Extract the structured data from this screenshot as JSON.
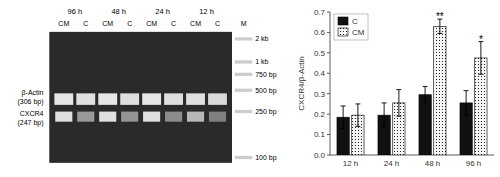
{
  "chart_data": [
    {
      "type": "bar",
      "categories": [
        "12 h",
        "24 h",
        "48 h",
        "96 h"
      ],
      "series": [
        {
          "name": "C",
          "color": "#111111",
          "values": [
            0.185,
            0.195,
            0.295,
            0.255
          ],
          "errors": [
            0.055,
            0.06,
            0.04,
            0.06
          ]
        },
        {
          "name": "CM",
          "color": "#f5f5f5",
          "values": [
            0.195,
            0.255,
            0.63,
            0.475
          ],
          "errors": [
            0.055,
            0.065,
            0.035,
            0.08
          ]
        }
      ],
      "ylabel": "CXCR4/β-Actin",
      "ylim": [
        0,
        0.7
      ],
      "yticks": [
        {
          "value": 0,
          "label": "0.0"
        },
        0.1,
        0.2,
        0.3,
        0.4,
        0.5,
        0.6,
        0.7
      ],
      "legend": "upper left",
      "grid": false,
      "annotations": [
        {
          "text": "**",
          "category": "48 h",
          "series": "CM"
        },
        {
          "text": "*",
          "category": "96 h",
          "series": "CM"
        }
      ]
    },
    {
      "type": "gel",
      "color": "#2a2a2a",
      "lane_groups": [
        "96 h",
        "48 h",
        "24 h",
        "12 h"
      ],
      "categories": [
        "CM",
        "C",
        "CM",
        "C",
        "CM",
        "C",
        "CM",
        "C"
      ],
      "series": [
        {
          "name": "β-Actin\n(306 bp)",
          "values": [
            0.9,
            0.88,
            0.9,
            0.87,
            0.9,
            0.87,
            0.88,
            0.85
          ]
        },
        {
          "name": "CXCR4\n(247 bp)",
          "values": [
            0.88,
            0.6,
            0.88,
            0.58,
            0.88,
            0.55,
            0.72,
            0.5
          ]
        }
      ],
      "marker_lane": "M",
      "marker_labels": [
        "2 kb",
        "1 kb",
        "750 bp",
        "500 bp",
        "250 bp",
        "100 bp"
      ]
    }
  ]
}
